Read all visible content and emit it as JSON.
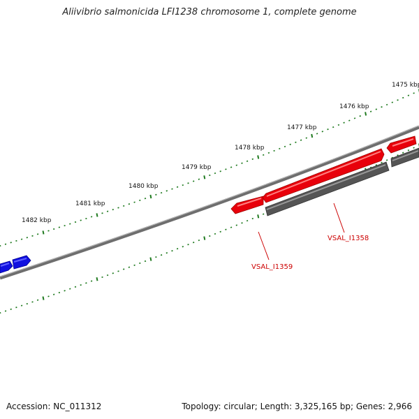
{
  "title": "Aliivibrio salmonicida LFI1238 chromosome 1, complete genome",
  "footer": {
    "accession": "Accession: NC_011312",
    "summary": "Topology: circular; Length: 3,325,165 bp; Genes: 2,966"
  },
  "ticks": [
    {
      "label": "1475 kbp"
    },
    {
      "label": "1476 kbp"
    },
    {
      "label": "1477 kbp"
    },
    {
      "label": "1478 kbp"
    },
    {
      "label": "1479 kbp"
    },
    {
      "label": "1480 kbp"
    },
    {
      "label": "1481 kbp"
    },
    {
      "label": "1482 kbp"
    }
  ],
  "gene_labels": [
    {
      "text": "VSAL_I1358"
    },
    {
      "text": "VSAL_I1359"
    }
  ],
  "colors": {
    "backbone": "#7a7a7a",
    "forward_gene": "#e8000b",
    "reverse_gene": "#555555",
    "other_gene": "#1010e0",
    "tick": "#1f7a1f",
    "gene_label": "#cc0000"
  }
}
